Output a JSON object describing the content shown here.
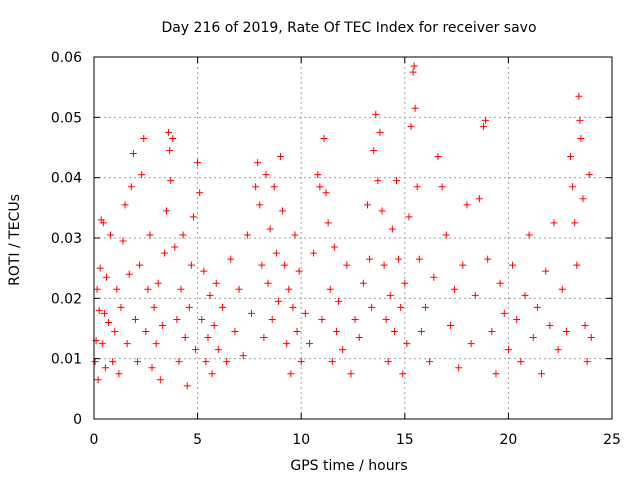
{
  "chart_data": {
    "type": "scatter",
    "title": "Day 216 of 2019, Rate Of TEC Index for receiver savo",
    "xlabel": "GPS time / hours",
    "ylabel": "ROTI / TECUs",
    "xlim": [
      0,
      25
    ],
    "ylim": [
      0,
      0.06
    ],
    "xticks": [
      "0",
      "5",
      "10",
      "15",
      "20",
      "25"
    ],
    "yticks": [
      "0",
      "0.01",
      "0.02",
      "0.03",
      "0.04",
      "0.05",
      "0.06"
    ],
    "grid": true,
    "marker": "+",
    "color": "#ff0000",
    "series": [
      {
        "points": [
          [
            0.05,
            0.0095
          ],
          [
            0.1,
            0.013
          ],
          [
            0.15,
            0.0215
          ],
          [
            0.2,
            0.0065
          ],
          [
            0.25,
            0.018
          ],
          [
            0.3,
            0.025
          ],
          [
            0.35,
            0.033
          ],
          [
            0.4,
            0.0125
          ],
          [
            0.45,
            0.0325
          ],
          [
            0.5,
            0.0175
          ],
          [
            0.55,
            0.0085
          ],
          [
            0.6,
            0.0235
          ],
          [
            0.7,
            0.016
          ],
          [
            0.8,
            0.0305
          ],
          [
            0.9,
            0.0095
          ],
          [
            1.0,
            0.0145
          ],
          [
            1.1,
            0.0215
          ],
          [
            1.2,
            0.0075
          ],
          [
            1.3,
            0.0185
          ],
          [
            1.4,
            0.0295
          ],
          [
            1.5,
            0.0355
          ],
          [
            1.6,
            0.0125
          ],
          [
            1.7,
            0.024
          ],
          [
            1.8,
            0.0385
          ],
          [
            1.9,
            0.044
          ],
          [
            2.0,
            0.0165
          ],
          [
            2.1,
            0.0095
          ],
          [
            2.2,
            0.0255
          ],
          [
            2.3,
            0.0405
          ],
          [
            2.4,
            0.0465
          ],
          [
            2.5,
            0.0145
          ],
          [
            2.6,
            0.0215
          ],
          [
            2.7,
            0.0305
          ],
          [
            2.8,
            0.0085
          ],
          [
            2.9,
            0.0185
          ],
          [
            3.0,
            0.0125
          ],
          [
            3.1,
            0.0225
          ],
          [
            3.2,
            0.0065
          ],
          [
            3.3,
            0.0155
          ],
          [
            3.4,
            0.0275
          ],
          [
            3.5,
            0.0345
          ],
          [
            3.6,
            0.0475
          ],
          [
            3.65,
            0.0445
          ],
          [
            3.7,
            0.0395
          ],
          [
            3.8,
            0.0465
          ],
          [
            3.9,
            0.0285
          ],
          [
            4.0,
            0.0165
          ],
          [
            4.1,
            0.0095
          ],
          [
            4.2,
            0.0215
          ],
          [
            4.3,
            0.0305
          ],
          [
            4.4,
            0.0135
          ],
          [
            4.5,
            0.0055
          ],
          [
            4.6,
            0.0185
          ],
          [
            4.7,
            0.0255
          ],
          [
            4.8,
            0.0335
          ],
          [
            4.9,
            0.0115
          ],
          [
            5.0,
            0.0425
          ],
          [
            5.1,
            0.0375
          ],
          [
            5.2,
            0.0165
          ],
          [
            5.3,
            0.0245
          ],
          [
            5.4,
            0.0095
          ],
          [
            5.5,
            0.0135
          ],
          [
            5.6,
            0.0205
          ],
          [
            5.7,
            0.0075
          ],
          [
            5.8,
            0.0155
          ],
          [
            5.9,
            0.0225
          ],
          [
            6.0,
            0.0115
          ],
          [
            6.2,
            0.0185
          ],
          [
            6.4,
            0.0095
          ],
          [
            6.6,
            0.0265
          ],
          [
            6.8,
            0.0145
          ],
          [
            7.0,
            0.0215
          ],
          [
            7.2,
            0.0105
          ],
          [
            7.4,
            0.0305
          ],
          [
            7.6,
            0.0175
          ],
          [
            7.8,
            0.0385
          ],
          [
            7.9,
            0.0425
          ],
          [
            8.0,
            0.0355
          ],
          [
            8.1,
            0.0255
          ],
          [
            8.2,
            0.0135
          ],
          [
            8.3,
            0.0405
          ],
          [
            8.4,
            0.0225
          ],
          [
            8.5,
            0.0315
          ],
          [
            8.6,
            0.0165
          ],
          [
            8.7,
            0.0385
          ],
          [
            8.8,
            0.0275
          ],
          [
            8.9,
            0.0195
          ],
          [
            9.0,
            0.0435
          ],
          [
            9.1,
            0.0345
          ],
          [
            9.2,
            0.0255
          ],
          [
            9.3,
            0.0125
          ],
          [
            9.4,
            0.0215
          ],
          [
            9.5,
            0.0075
          ],
          [
            9.6,
            0.0185
          ],
          [
            9.7,
            0.0305
          ],
          [
            9.8,
            0.0145
          ],
          [
            9.9,
            0.0245
          ],
          [
            10.0,
            0.0095
          ],
          [
            10.2,
            0.0175
          ],
          [
            10.4,
            0.0125
          ],
          [
            10.6,
            0.0275
          ],
          [
            10.8,
            0.0405
          ],
          [
            10.9,
            0.0385
          ],
          [
            11.0,
            0.0165
          ],
          [
            11.1,
            0.0465
          ],
          [
            11.2,
            0.0375
          ],
          [
            11.3,
            0.0325
          ],
          [
            11.4,
            0.0215
          ],
          [
            11.5,
            0.0095
          ],
          [
            11.6,
            0.0285
          ],
          [
            11.7,
            0.0145
          ],
          [
            11.8,
            0.0195
          ],
          [
            12.0,
            0.0115
          ],
          [
            12.2,
            0.0255
          ],
          [
            12.4,
            0.0075
          ],
          [
            12.6,
            0.0165
          ],
          [
            12.8,
            0.0135
          ],
          [
            13.0,
            0.0225
          ],
          [
            13.2,
            0.0355
          ],
          [
            13.3,
            0.0265
          ],
          [
            13.4,
            0.0185
          ],
          [
            13.5,
            0.0445
          ],
          [
            13.6,
            0.0505
          ],
          [
            13.7,
            0.0395
          ],
          [
            13.8,
            0.0475
          ],
          [
            13.9,
            0.0345
          ],
          [
            14.0,
            0.0255
          ],
          [
            14.1,
            0.0165
          ],
          [
            14.2,
            0.0095
          ],
          [
            14.3,
            0.0205
          ],
          [
            14.4,
            0.0315
          ],
          [
            14.5,
            0.0145
          ],
          [
            14.6,
            0.0395
          ],
          [
            14.7,
            0.0265
          ],
          [
            14.8,
            0.0185
          ],
          [
            14.9,
            0.0075
          ],
          [
            15.0,
            0.0225
          ],
          [
            15.1,
            0.0125
          ],
          [
            15.2,
            0.0335
          ],
          [
            15.3,
            0.0485
          ],
          [
            15.4,
            0.0575
          ],
          [
            15.45,
            0.0585
          ],
          [
            15.5,
            0.0515
          ],
          [
            15.6,
            0.0385
          ],
          [
            15.7,
            0.0265
          ],
          [
            15.8,
            0.0145
          ],
          [
            16.0,
            0.0185
          ],
          [
            16.2,
            0.0095
          ],
          [
            16.4,
            0.0235
          ],
          [
            16.6,
            0.0435
          ],
          [
            16.8,
            0.0385
          ],
          [
            17.0,
            0.0305
          ],
          [
            17.2,
            0.0155
          ],
          [
            17.4,
            0.0215
          ],
          [
            17.6,
            0.0085
          ],
          [
            17.8,
            0.0255
          ],
          [
            18.0,
            0.0355
          ],
          [
            18.2,
            0.0125
          ],
          [
            18.4,
            0.0205
          ],
          [
            18.6,
            0.0365
          ],
          [
            18.8,
            0.0485
          ],
          [
            18.9,
            0.0495
          ],
          [
            19.0,
            0.0265
          ],
          [
            19.2,
            0.0145
          ],
          [
            19.4,
            0.0075
          ],
          [
            19.6,
            0.0225
          ],
          [
            19.8,
            0.0175
          ],
          [
            20.0,
            0.0115
          ],
          [
            20.2,
            0.0255
          ],
          [
            20.4,
            0.0165
          ],
          [
            20.6,
            0.0095
          ],
          [
            20.8,
            0.0205
          ],
          [
            21.0,
            0.0305
          ],
          [
            21.2,
            0.0135
          ],
          [
            21.4,
            0.0185
          ],
          [
            21.6,
            0.0075
          ],
          [
            21.8,
            0.0245
          ],
          [
            22.0,
            0.0155
          ],
          [
            22.2,
            0.0325
          ],
          [
            22.4,
            0.0115
          ],
          [
            22.6,
            0.0215
          ],
          [
            22.8,
            0.0145
          ],
          [
            23.0,
            0.0435
          ],
          [
            23.1,
            0.0385
          ],
          [
            23.2,
            0.0325
          ],
          [
            23.3,
            0.0255
          ],
          [
            23.4,
            0.0535
          ],
          [
            23.45,
            0.0495
          ],
          [
            23.5,
            0.0465
          ],
          [
            23.6,
            0.0365
          ],
          [
            23.7,
            0.0155
          ],
          [
            23.8,
            0.0095
          ],
          [
            23.9,
            0.0405
          ],
          [
            24.0,
            0.0135
          ]
        ]
      }
    ]
  }
}
